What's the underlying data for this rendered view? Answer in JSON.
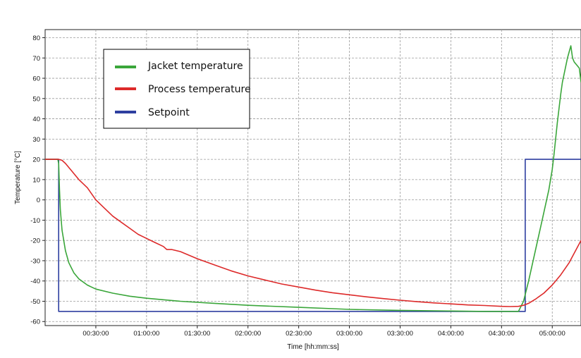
{
  "chart_data": {
    "type": "line",
    "title": "",
    "xlabel": "Time [hh:mm:ss]",
    "ylabel": "Temperature [°C]",
    "x_unit": "minutes",
    "xlim": [
      0,
      317
    ],
    "ylim": [
      -62,
      84
    ],
    "x_ticks": [
      {
        "value": 30,
        "label": "00:30:00"
      },
      {
        "value": 60,
        "label": "01:00:00"
      },
      {
        "value": 90,
        "label": "01:30:00"
      },
      {
        "value": 120,
        "label": "02:00:00"
      },
      {
        "value": 150,
        "label": "02:30:00"
      },
      {
        "value": 180,
        "label": "03:00:00"
      },
      {
        "value": 210,
        "label": "03:30:00"
      },
      {
        "value": 240,
        "label": "04:00:00"
      },
      {
        "value": 270,
        "label": "04:30:00"
      },
      {
        "value": 300,
        "label": "05:00:00"
      }
    ],
    "y_ticks": [
      80,
      70,
      60,
      50,
      40,
      30,
      20,
      10,
      0,
      -10,
      -20,
      -30,
      -40,
      -50,
      -60
    ],
    "grid": true,
    "legend_position": "top-left",
    "series": [
      {
        "name": "Jacket temperature",
        "color": "#3aa63a",
        "x": [
          0,
          7.5,
          8,
          8.5,
          9,
          10,
          12,
          14,
          17,
          20,
          25,
          30,
          40,
          50,
          60,
          80,
          100,
          120,
          150,
          180,
          210,
          240,
          260,
          280,
          283,
          286,
          290,
          294,
          298,
          300,
          301,
          302,
          303,
          304,
          305,
          306,
          307,
          308,
          309,
          310,
          311,
          312,
          313,
          314,
          315,
          316,
          317
        ],
        "y": [
          20,
          20,
          18,
          5,
          -5,
          -15,
          -25,
          -31,
          -36,
          -39,
          -42,
          -44,
          -46,
          -47.5,
          -48.5,
          -50,
          -51,
          -52,
          -53,
          -54,
          -54.5,
          -54.8,
          -55,
          -55,
          -50,
          -40,
          -25,
          -10,
          5,
          15,
          22,
          30,
          38,
          45,
          52,
          58,
          62,
          66,
          70,
          73,
          76,
          70,
          68,
          67,
          66,
          65,
          58
        ]
      },
      {
        "name": "Process temperature",
        "color": "#dd2a2a",
        "x": [
          0,
          8,
          10,
          12,
          15,
          20,
          25,
          30,
          35,
          40,
          45,
          50,
          55,
          60,
          65,
          70,
          72,
          75,
          80,
          90,
          100,
          110,
          120,
          130,
          140,
          150,
          160,
          170,
          180,
          190,
          200,
          210,
          220,
          230,
          240,
          250,
          260,
          270,
          275,
          280,
          283,
          286,
          290,
          295,
          300,
          305,
          310,
          317
        ],
        "y": [
          20,
          20,
          19.5,
          18,
          15,
          10,
          6,
          0,
          -4,
          -8,
          -11,
          -14,
          -17,
          -19,
          -21,
          -23,
          -24.5,
          -24.5,
          -25.5,
          -29,
          -32,
          -35,
          -37.5,
          -39.5,
          -41.5,
          -43,
          -44.5,
          -45.8,
          -46.8,
          -47.8,
          -48.7,
          -49.5,
          -50.2,
          -50.8,
          -51.3,
          -51.8,
          -52.1,
          -52.5,
          -52.6,
          -52.5,
          -52,
          -51,
          -49,
          -46,
          -42,
          -37,
          -31,
          -20
        ]
      },
      {
        "name": "Setpoint",
        "color": "#2e3fa0",
        "x": [
          0,
          8,
          8,
          284,
          284,
          317
        ],
        "y": [
          20,
          20,
          -55,
          -55,
          20,
          20
        ]
      }
    ]
  }
}
